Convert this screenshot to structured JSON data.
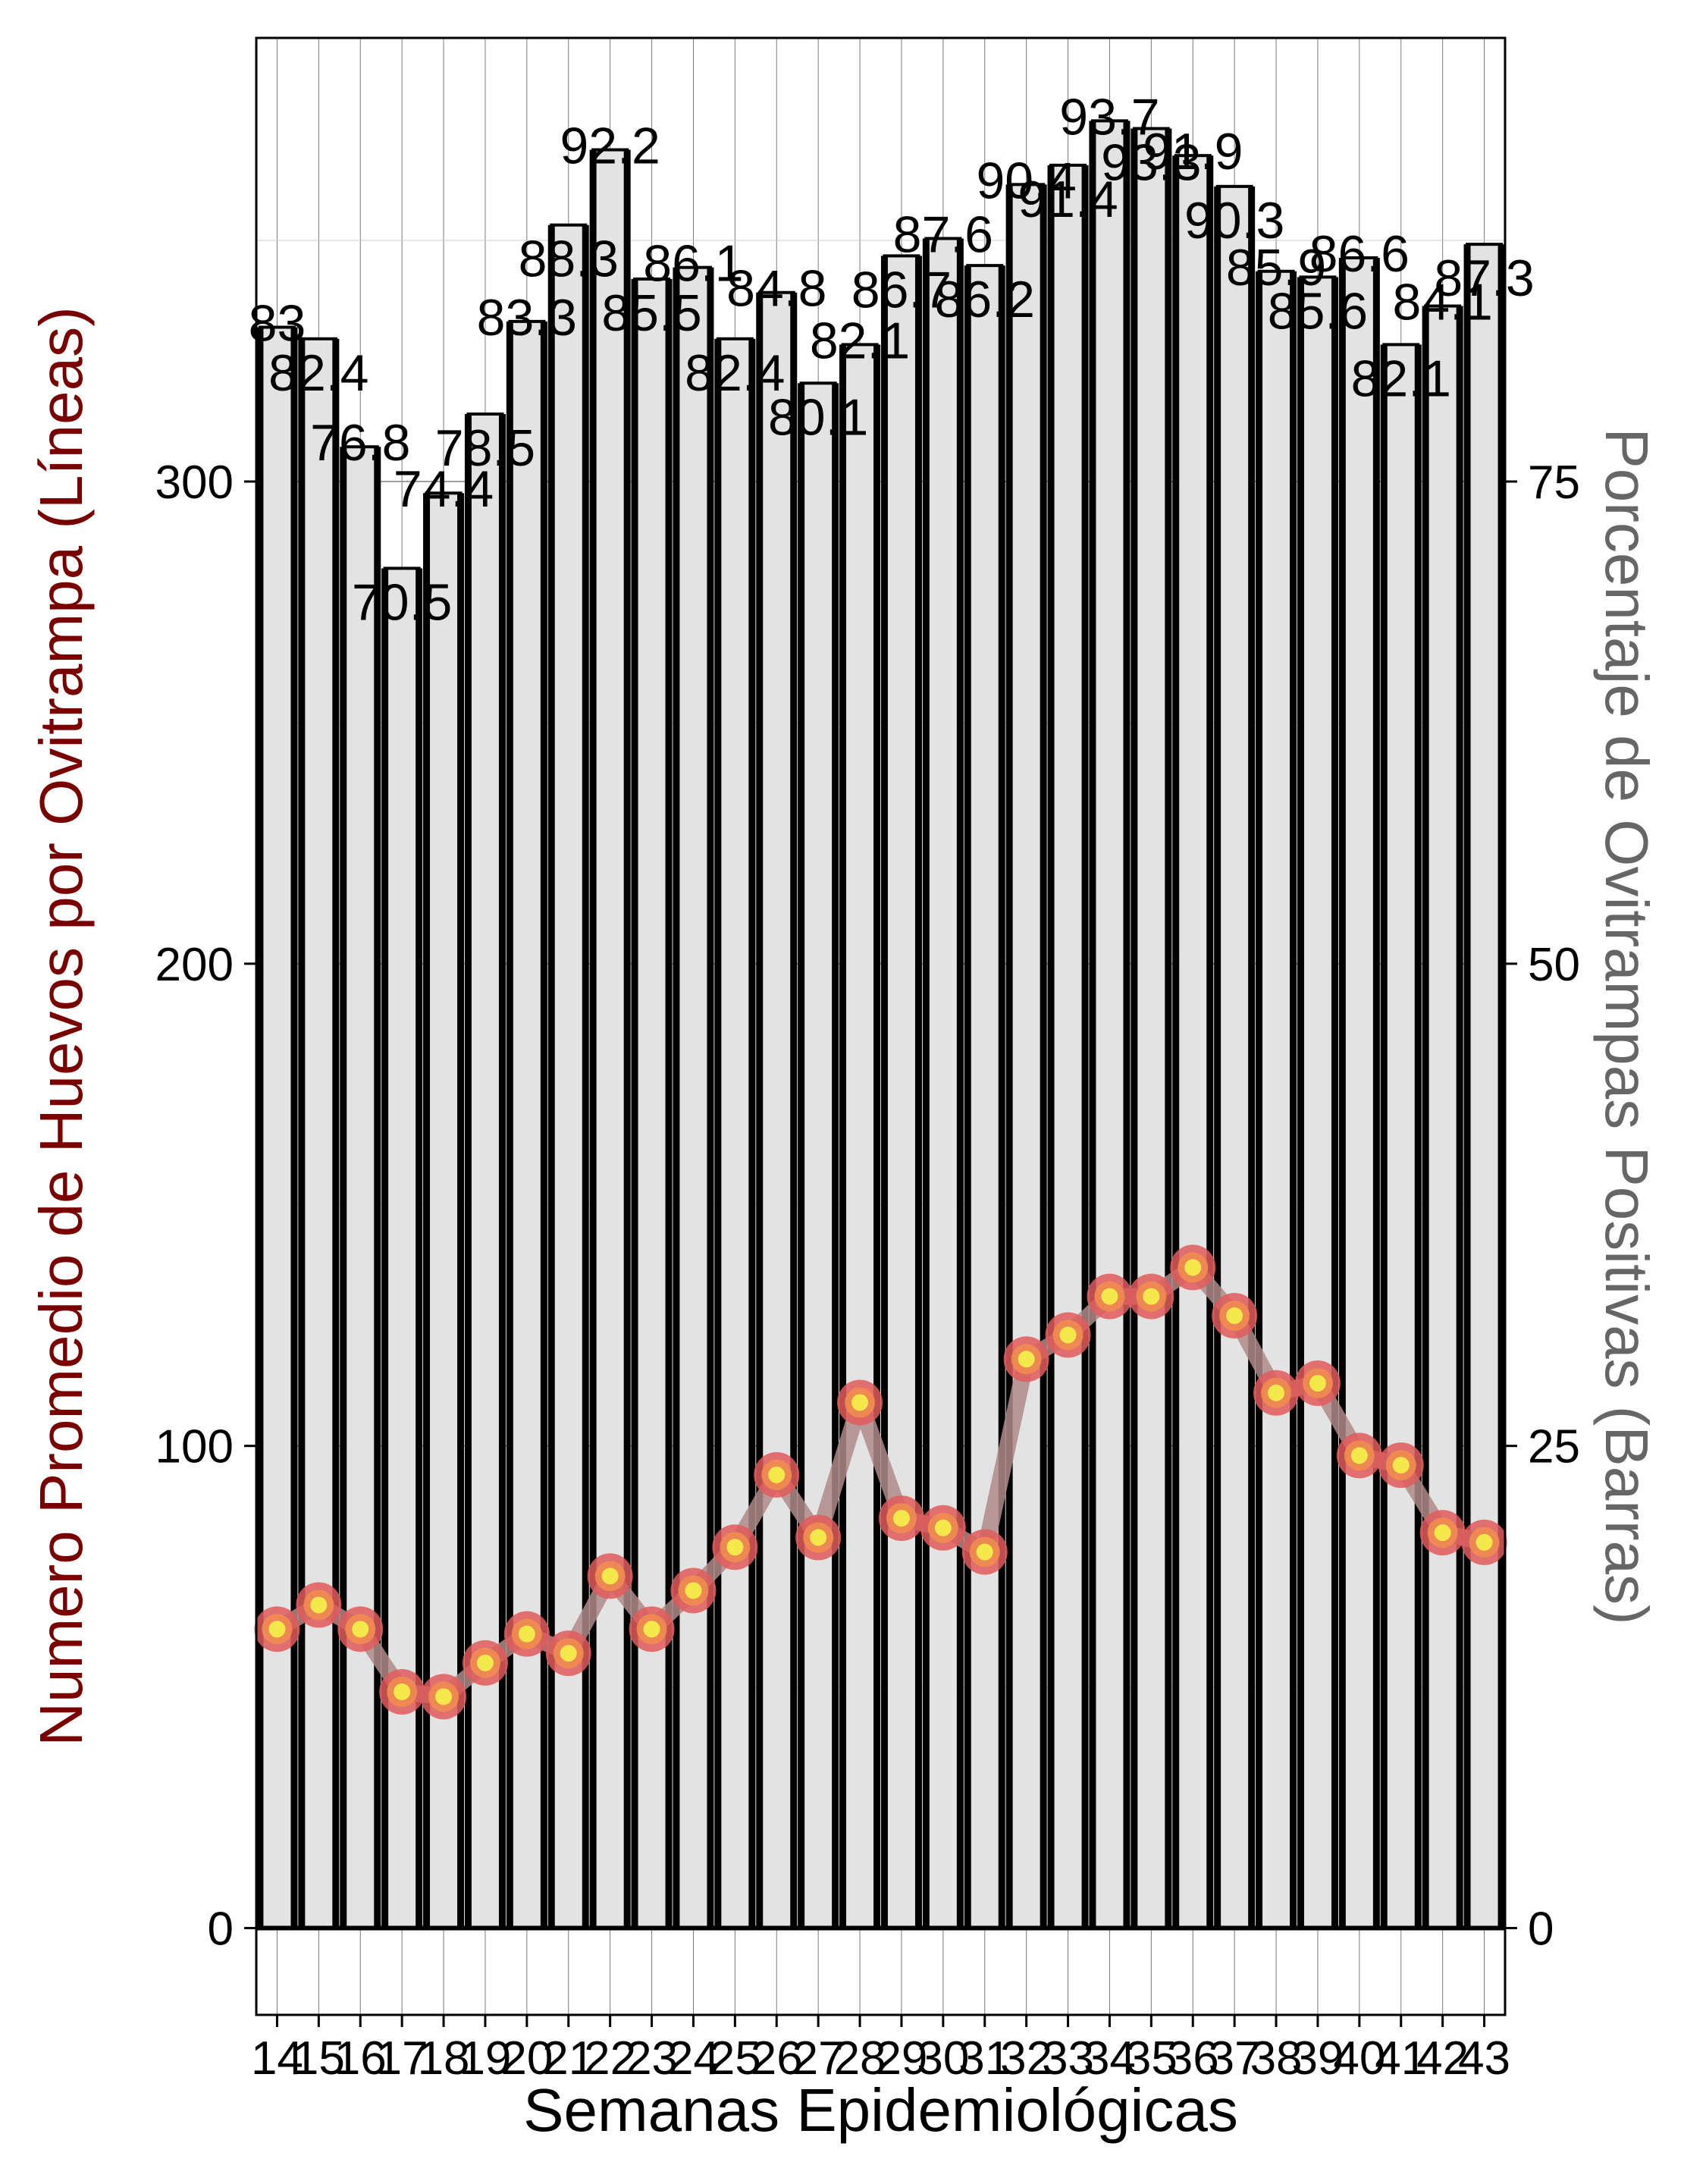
{
  "chart_data": {
    "type": "bar+line",
    "title": "",
    "xlabel": "Semanas Epidemiológicas",
    "ylabel_left": "Numero Promedio de Huevos por Ovitrampa (Líneas)",
    "ylabel_right": "Porcentaje de Ovitrampas Positivas (Barras)",
    "ylim_left": [
      -18,
      392
    ],
    "ylim_right": [
      -4.5,
      98
    ],
    "yticks_left": [
      0,
      100,
      200,
      300
    ],
    "yticks_right": [
      0,
      25,
      50,
      75
    ],
    "grid": true,
    "categories": [
      "14",
      "15",
      "16",
      "17",
      "18",
      "19",
      "20",
      "21",
      "22",
      "23",
      "24",
      "25",
      "26",
      "27",
      "28",
      "29",
      "30",
      "31",
      "32",
      "33",
      "34",
      "35",
      "36",
      "37",
      "38",
      "39",
      "40",
      "41",
      "42",
      "43"
    ],
    "series": [
      {
        "kind": "bar",
        "axis": "right",
        "values": [
          83,
          82.4,
          76.8,
          70.5,
          74.4,
          78.5,
          83.3,
          88.3,
          92.2,
          85.5,
          86.1,
          82.4,
          84.8,
          80.1,
          82.1,
          86.7,
          87.6,
          86.2,
          90.4,
          91.4,
          93.7,
          93.3,
          91.9,
          90.3,
          85.9,
          85.6,
          86.6,
          82.1,
          84.1,
          87.3
        ],
        "labels": [
          "83",
          "82.4",
          "76.8",
          "70.5",
          "74.4",
          "78.5",
          "83.3",
          "88.3",
          "92.2",
          "85.5",
          "86.1",
          "82.4",
          "84.8",
          "80.1",
          "82.1",
          "86.7",
          "87.6",
          "86.2",
          "90.4",
          "91.4",
          "93.7",
          "93.3",
          "91.9",
          "90.3",
          "85.9",
          "85.6",
          "86.6",
          "82.1",
          "84.1",
          "87.3"
        ],
        "fill": "#e3e3e3",
        "stroke": "#000000"
      },
      {
        "kind": "line",
        "axis": "left",
        "values": [
          62,
          67,
          62,
          49,
          48,
          55,
          61,
          57,
          73,
          62,
          70,
          79,
          94,
          81,
          109,
          85,
          83,
          78,
          118,
          123,
          131,
          131,
          137,
          127,
          111,
          113,
          98,
          96,
          82,
          80
        ],
        "line_color": "#b08a8a",
        "marker_outer": "#e05a5a",
        "marker_mid": "#f08c50",
        "marker_inner": "#f5e84a"
      }
    ],
    "colors": {
      "left_title": "#7a0000",
      "right_title": "#666666"
    }
  }
}
